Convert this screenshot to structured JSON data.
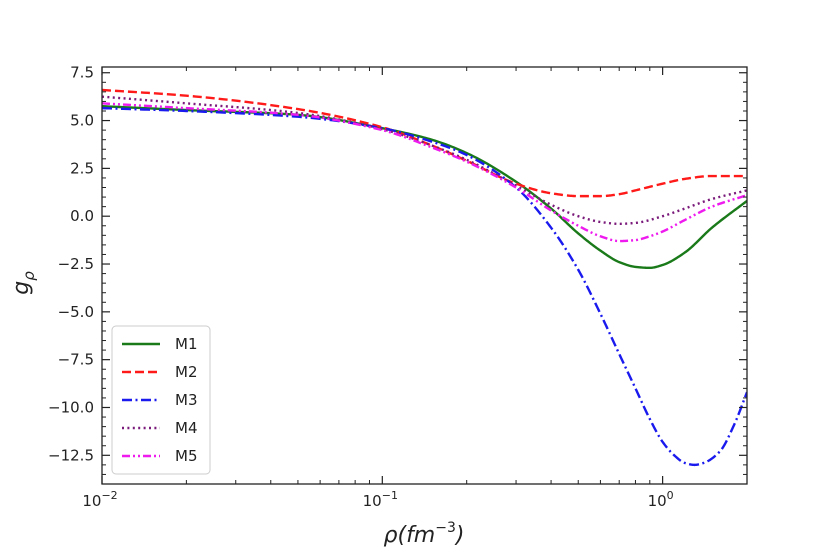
{
  "chart_data": {
    "type": "line",
    "title": "",
    "xscale": "log",
    "xlim": [
      0.01,
      2.0
    ],
    "ylim": [
      -14.0,
      7.8
    ],
    "xlabel": "ρ(fm⁻³)",
    "ylabel": "gρ",
    "xticks": [
      {
        "value": 0.01,
        "base": "10",
        "exp": "−2"
      },
      {
        "value": 0.1,
        "base": "10",
        "exp": "−1"
      },
      {
        "value": 1,
        "base": "10",
        "exp": "0"
      }
    ],
    "yticks": [
      {
        "value": 7.5,
        "label": "7.5"
      },
      {
        "value": 5.0,
        "label": "5.0"
      },
      {
        "value": 2.5,
        "label": "2.5"
      },
      {
        "value": 0.0,
        "label": "0.0"
      },
      {
        "value": -2.5,
        "label": "−2.5"
      },
      {
        "value": -5.0,
        "label": "−5.0"
      },
      {
        "value": -7.5,
        "label": "−7.5"
      },
      {
        "value": -10.0,
        "label": "−10.0"
      },
      {
        "value": -12.5,
        "label": "−12.5"
      }
    ],
    "legend_position": "lower-left",
    "series": [
      {
        "name": "M1",
        "color": "#1a7a1a",
        "dash": "solid",
        "x": [
          0.01,
          0.02,
          0.05,
          0.1,
          0.15,
          0.2,
          0.3,
          0.4,
          0.5,
          0.6,
          0.7,
          0.8,
          0.9,
          1.0,
          1.2,
          1.5,
          2.0
        ],
        "y": [
          5.75,
          5.55,
          5.3,
          4.6,
          4.0,
          3.3,
          1.8,
          0.4,
          -0.9,
          -1.8,
          -2.4,
          -2.65,
          -2.7,
          -2.55,
          -1.9,
          -0.6,
          0.8
        ]
      },
      {
        "name": "M2",
        "color": "#ff1a1a",
        "dash": "dashed",
        "x": [
          0.01,
          0.02,
          0.05,
          0.1,
          0.15,
          0.2,
          0.3,
          0.4,
          0.5,
          0.6,
          0.7,
          0.8,
          1.0,
          1.2,
          1.5,
          2.0
        ],
        "y": [
          6.6,
          6.3,
          5.6,
          4.65,
          3.7,
          2.9,
          1.7,
          1.2,
          1.05,
          1.05,
          1.15,
          1.35,
          1.7,
          1.95,
          2.1,
          2.1
        ]
      },
      {
        "name": "M3",
        "color": "#1a1aee",
        "dash": "dashdot",
        "x": [
          0.01,
          0.02,
          0.05,
          0.1,
          0.15,
          0.2,
          0.3,
          0.4,
          0.5,
          0.6,
          0.7,
          0.8,
          0.9,
          1.0,
          1.1,
          1.2,
          1.3,
          1.4,
          1.6,
          1.8,
          2.0
        ],
        "y": [
          5.65,
          5.5,
          5.2,
          4.6,
          3.9,
          3.2,
          1.5,
          -0.6,
          -2.8,
          -5.1,
          -7.2,
          -9.0,
          -10.6,
          -11.8,
          -12.5,
          -12.9,
          -13.0,
          -12.9,
          -12.3,
          -10.9,
          -9.2
        ]
      },
      {
        "name": "M4",
        "color": "#7a1a7a",
        "dash": "dotted",
        "x": [
          0.01,
          0.02,
          0.05,
          0.1,
          0.15,
          0.2,
          0.3,
          0.4,
          0.5,
          0.6,
          0.7,
          0.8,
          1.0,
          1.2,
          1.5,
          2.0
        ],
        "y": [
          6.25,
          5.9,
          5.4,
          4.55,
          3.7,
          2.95,
          1.6,
          0.6,
          0.0,
          -0.3,
          -0.4,
          -0.35,
          0.0,
          0.4,
          0.9,
          1.35
        ]
      },
      {
        "name": "M5",
        "color": "#ee1aee",
        "dash": "dashdotdot",
        "x": [
          0.01,
          0.02,
          0.05,
          0.1,
          0.15,
          0.2,
          0.3,
          0.4,
          0.5,
          0.6,
          0.7,
          0.8,
          0.9,
          1.0,
          1.2,
          1.5,
          2.0
        ],
        "y": [
          5.9,
          5.65,
          5.3,
          4.5,
          3.6,
          2.85,
          1.5,
          0.3,
          -0.5,
          -1.05,
          -1.3,
          -1.25,
          -1.05,
          -0.8,
          -0.2,
          0.5,
          1.1
        ]
      }
    ]
  }
}
